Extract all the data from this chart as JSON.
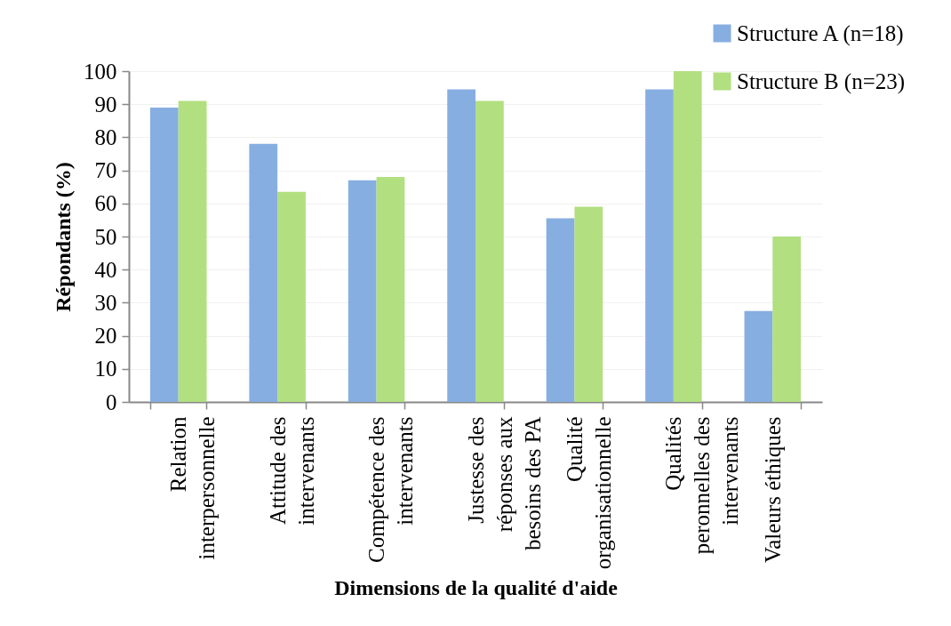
{
  "chart_data": {
    "type": "bar",
    "xlabel": "Dimensions de la qualité d'aide",
    "ylabel": "Répondants (%)",
    "categories": [
      "Relation\ninterpersonnelle",
      "Attitude des\nintervenants",
      "Compétence des\nintervenants",
      "Justesse des\nréponses aux\nbesoins des PA",
      "Qualité\norganisationnelle",
      "Qualités\nperonnelles des\nintervenants",
      "Valeurs éthiques"
    ],
    "series": [
      {
        "name": "Structure A (n=18)",
        "color": "#87aee1",
        "values": [
          89,
          78,
          67,
          94.5,
          55.5,
          94.5,
          27.5
        ]
      },
      {
        "name": "Structure B (n=23)",
        "color": "#b2df80",
        "values": [
          91,
          63.5,
          68,
          91,
          59,
          100,
          50
        ]
      }
    ],
    "ylim": [
      0,
      100
    ],
    "yticks": [
      0,
      10,
      20,
      30,
      40,
      50,
      60,
      70,
      80,
      90,
      100
    ],
    "grid": "y",
    "legend": "top right"
  }
}
